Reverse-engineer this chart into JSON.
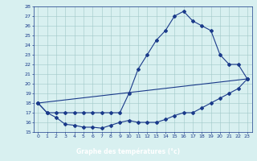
{
  "line1_x": [
    0,
    1,
    2,
    3,
    4,
    5,
    6,
    7,
    8,
    9,
    10,
    11,
    12,
    13,
    14,
    15,
    16,
    17,
    18,
    19,
    20,
    21,
    22,
    23
  ],
  "line1_y": [
    18,
    17,
    17,
    17,
    17,
    17,
    17,
    17,
    17,
    17,
    19,
    21.5,
    23,
    24.5,
    25.5,
    27,
    27.5,
    26.5,
    26,
    25.5,
    23,
    22,
    22,
    20.5
  ],
  "line2_x": [
    0,
    23
  ],
  "line2_y": [
    18,
    20.5
  ],
  "line3_x": [
    0,
    1,
    2,
    3,
    4,
    5,
    6,
    7,
    8,
    9,
    10,
    11,
    12,
    13,
    14,
    15,
    16,
    17,
    18,
    19,
    20,
    21,
    22,
    23
  ],
  "line3_y": [
    18,
    17,
    16.5,
    15.8,
    15.7,
    15.5,
    15.5,
    15.4,
    15.7,
    16.0,
    16.2,
    16.0,
    16.0,
    16.0,
    16.3,
    16.7,
    17.0,
    17.0,
    17.5,
    18.0,
    18.5,
    19.0,
    19.5,
    20.5
  ],
  "line_color": "#1a3a8a",
  "marker": "D",
  "markersize": 2,
  "linewidth": 0.8,
  "xlim": [
    -0.5,
    23.5
  ],
  "ylim": [
    15,
    28
  ],
  "yticks": [
    15,
    16,
    17,
    18,
    19,
    20,
    21,
    22,
    23,
    24,
    25,
    26,
    27,
    28
  ],
  "xticks": [
    0,
    1,
    2,
    3,
    4,
    5,
    6,
    7,
    8,
    9,
    10,
    11,
    12,
    13,
    14,
    15,
    16,
    17,
    18,
    19,
    20,
    21,
    22,
    23
  ],
  "xlabel": "Graphe des températures (°c)",
  "bg_color": "#d8f0f0",
  "grid_color": "#a0c8c8",
  "label_bg_color": "#2244aa",
  "label_text_color": "#ffffff",
  "tick_color": "#1a3a8a",
  "tick_labelsize": 4.5,
  "xlabel_fontsize": 5.5
}
